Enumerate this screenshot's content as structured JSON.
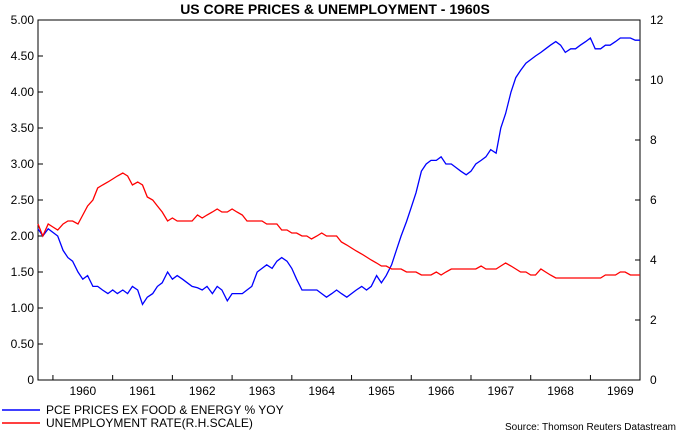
{
  "chart_data": {
    "type": "line",
    "title": "US CORE PRICES & UNEMPLOYMENT - 1960S",
    "source": "Source: Thomson Reuters Datastream",
    "x_ticks": [
      "1960",
      "1961",
      "1962",
      "1963",
      "1964",
      "1965",
      "1966",
      "1967",
      "1968",
      "1969"
    ],
    "x_range": [
      1959.75,
      1969.83
    ],
    "y_left": {
      "ticks": [
        "0",
        "0.50",
        "1.00",
        "1.50",
        "2.00",
        "2.50",
        "3.00",
        "3.50",
        "4.00",
        "4.50",
        "5.00"
      ],
      "range": [
        0,
        5
      ]
    },
    "y_right": {
      "ticks": [
        "0",
        "2",
        "4",
        "6",
        "8",
        "10",
        "12"
      ],
      "range": [
        0,
        12
      ]
    },
    "colors": {
      "pce": "#0000ff",
      "unemployment": "#ff0000"
    },
    "series": [
      {
        "name": "PCE PRICES EX FOOD & ENERGY % YOY",
        "axis": "left",
        "color": "#0000ff",
        "x": [
          1959.75,
          1959.83,
          1959.92,
          1960.0,
          1960.08,
          1960.17,
          1960.25,
          1960.33,
          1960.42,
          1960.5,
          1960.58,
          1960.67,
          1960.75,
          1960.83,
          1960.92,
          1961.0,
          1961.08,
          1961.17,
          1961.25,
          1961.33,
          1961.42,
          1961.5,
          1961.58,
          1961.67,
          1961.75,
          1961.83,
          1961.92,
          1962.0,
          1962.08,
          1962.17,
          1962.25,
          1962.33,
          1962.42,
          1962.5,
          1962.58,
          1962.67,
          1962.75,
          1962.83,
          1962.92,
          1963.0,
          1963.08,
          1963.17,
          1963.25,
          1963.33,
          1963.42,
          1963.5,
          1963.58,
          1963.67,
          1963.75,
          1963.83,
          1963.92,
          1964.0,
          1964.08,
          1964.17,
          1964.25,
          1964.33,
          1964.42,
          1964.5,
          1964.58,
          1964.67,
          1964.75,
          1964.83,
          1964.92,
          1965.0,
          1965.08,
          1965.17,
          1965.25,
          1965.33,
          1965.42,
          1965.5,
          1965.58,
          1965.67,
          1965.75,
          1965.83,
          1965.92,
          1966.0,
          1966.08,
          1966.17,
          1966.25,
          1966.33,
          1966.42,
          1966.5,
          1966.58,
          1966.67,
          1966.75,
          1966.83,
          1966.92,
          1967.0,
          1967.08,
          1967.17,
          1967.25,
          1967.33,
          1967.42,
          1967.5,
          1967.58,
          1967.67,
          1967.75,
          1967.83,
          1967.92,
          1968.0,
          1968.08,
          1968.17,
          1968.25,
          1968.33,
          1968.42,
          1968.5,
          1968.58,
          1968.67,
          1968.75,
          1968.83,
          1968.92,
          1969.0,
          1969.08,
          1969.17,
          1969.25,
          1969.33,
          1969.42,
          1969.5,
          1969.58,
          1969.67,
          1969.75,
          1969.83
        ],
        "y": [
          2.1,
          2.0,
          2.1,
          2.05,
          2.0,
          1.8,
          1.7,
          1.65,
          1.5,
          1.4,
          1.45,
          1.3,
          1.3,
          1.25,
          1.2,
          1.25,
          1.2,
          1.25,
          1.2,
          1.3,
          1.25,
          1.05,
          1.15,
          1.2,
          1.3,
          1.35,
          1.5,
          1.4,
          1.45,
          1.4,
          1.35,
          1.3,
          1.28,
          1.25,
          1.3,
          1.2,
          1.3,
          1.25,
          1.1,
          1.2,
          1.2,
          1.2,
          1.25,
          1.3,
          1.5,
          1.55,
          1.6,
          1.55,
          1.65,
          1.7,
          1.65,
          1.55,
          1.4,
          1.25,
          1.25,
          1.25,
          1.25,
          1.2,
          1.15,
          1.2,
          1.25,
          1.2,
          1.15,
          1.2,
          1.25,
          1.3,
          1.25,
          1.3,
          1.45,
          1.35,
          1.45,
          1.6,
          1.8,
          2.0,
          2.2,
          2.4,
          2.6,
          2.9,
          3.0,
          3.05,
          3.05,
          3.1,
          3.0,
          3.0,
          2.95,
          2.9,
          2.85,
          2.9,
          3.0,
          3.05,
          3.1,
          3.2,
          3.15,
          3.5,
          3.7,
          4.0,
          4.2,
          4.3,
          4.4,
          4.45,
          4.5,
          4.55,
          4.6,
          4.65,
          4.7,
          4.65,
          4.55,
          4.6,
          4.6,
          4.65,
          4.7,
          4.75,
          4.6,
          4.6,
          4.65,
          4.65,
          4.7,
          4.75,
          4.75,
          4.75,
          4.72,
          4.72
        ]
      },
      {
        "name": "UNEMPLOYMENT RATE(R.H.SCALE)",
        "axis": "right",
        "color": "#ff0000",
        "x": [
          1959.75,
          1959.83,
          1959.92,
          1960.0,
          1960.08,
          1960.17,
          1960.25,
          1960.33,
          1960.42,
          1960.5,
          1960.58,
          1960.67,
          1960.75,
          1960.83,
          1960.92,
          1961.0,
          1961.08,
          1961.17,
          1961.25,
          1961.33,
          1961.42,
          1961.5,
          1961.58,
          1961.67,
          1961.75,
          1961.83,
          1961.92,
          1962.0,
          1962.08,
          1962.17,
          1962.25,
          1962.33,
          1962.42,
          1962.5,
          1962.58,
          1962.67,
          1962.75,
          1962.83,
          1962.92,
          1963.0,
          1963.08,
          1963.17,
          1963.25,
          1963.33,
          1963.42,
          1963.5,
          1963.58,
          1963.67,
          1963.75,
          1963.83,
          1963.92,
          1964.0,
          1964.08,
          1964.17,
          1964.25,
          1964.33,
          1964.42,
          1964.5,
          1964.58,
          1964.67,
          1964.75,
          1964.83,
          1964.92,
          1965.0,
          1965.08,
          1965.17,
          1965.25,
          1965.33,
          1965.42,
          1965.5,
          1965.58,
          1965.67,
          1965.75,
          1965.83,
          1965.92,
          1966.0,
          1966.08,
          1966.17,
          1966.25,
          1966.33,
          1966.42,
          1966.5,
          1966.58,
          1966.67,
          1966.75,
          1966.83,
          1966.92,
          1967.0,
          1967.08,
          1967.17,
          1967.25,
          1967.33,
          1967.42,
          1967.5,
          1967.58,
          1967.67,
          1967.75,
          1967.83,
          1967.92,
          1968.0,
          1968.08,
          1968.17,
          1968.25,
          1968.33,
          1968.42,
          1968.5,
          1968.58,
          1968.67,
          1968.75,
          1968.83,
          1968.92,
          1969.0,
          1969.08,
          1969.17,
          1969.25,
          1969.33,
          1969.42,
          1969.5,
          1969.58,
          1969.67,
          1969.75,
          1969.83
        ],
        "y": [
          5.2,
          4.8,
          5.2,
          5.1,
          5.0,
          5.2,
          5.3,
          5.3,
          5.2,
          5.5,
          5.8,
          6.0,
          6.4,
          6.5,
          6.6,
          6.7,
          6.8,
          6.9,
          6.8,
          6.5,
          6.6,
          6.5,
          6.1,
          6.0,
          5.8,
          5.6,
          5.3,
          5.4,
          5.3,
          5.3,
          5.3,
          5.3,
          5.5,
          5.4,
          5.5,
          5.6,
          5.7,
          5.6,
          5.6,
          5.7,
          5.6,
          5.5,
          5.3,
          5.3,
          5.3,
          5.3,
          5.2,
          5.2,
          5.2,
          5.0,
          5.0,
          4.9,
          4.9,
          4.8,
          4.8,
          4.7,
          4.8,
          4.9,
          4.8,
          4.8,
          4.8,
          4.6,
          4.5,
          4.4,
          4.3,
          4.2,
          4.1,
          4.0,
          3.9,
          3.8,
          3.8,
          3.7,
          3.7,
          3.7,
          3.6,
          3.6,
          3.6,
          3.5,
          3.5,
          3.5,
          3.6,
          3.5,
          3.6,
          3.7,
          3.7,
          3.7,
          3.7,
          3.7,
          3.7,
          3.8,
          3.7,
          3.7,
          3.7,
          3.8,
          3.9,
          3.8,
          3.7,
          3.6,
          3.6,
          3.5,
          3.5,
          3.7,
          3.6,
          3.5,
          3.4,
          3.4,
          3.4,
          3.4,
          3.4,
          3.4,
          3.4,
          3.4,
          3.4,
          3.4,
          3.5,
          3.5,
          3.5,
          3.6,
          3.6,
          3.5,
          3.5,
          3.5
        ]
      }
    ]
  }
}
